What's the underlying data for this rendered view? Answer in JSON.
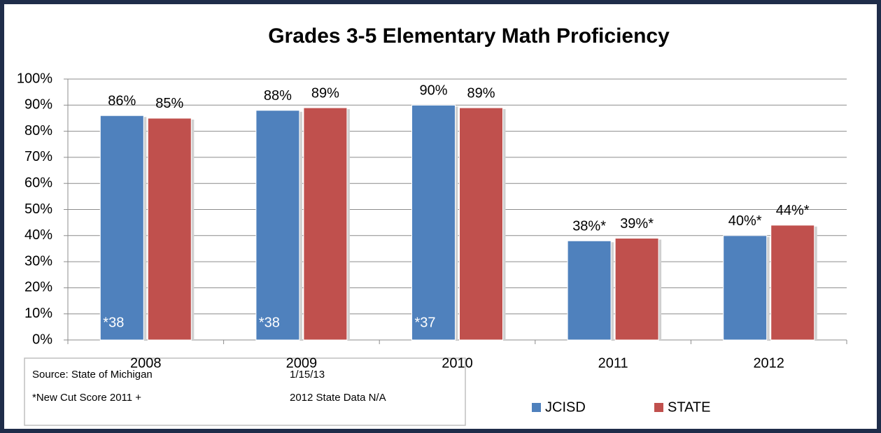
{
  "chart_data": {
    "type": "bar",
    "title": "Grades 3-5 Elementary Math Proficiency",
    "categories": [
      "2008",
      "2009",
      "2010",
      "2011",
      "2012"
    ],
    "series": [
      {
        "name": "JCISD",
        "color": "#4f81bd",
        "values": [
          86,
          88,
          90,
          38,
          40
        ],
        "value_labels": [
          "86%",
          "88%",
          "90%",
          "38%*",
          "40%*"
        ]
      },
      {
        "name": "STATE",
        "color": "#c0504d",
        "values": [
          85,
          89,
          89,
          39,
          44
        ],
        "value_labels": [
          "85%",
          "89%",
          "89%",
          "39%*",
          "44%*"
        ]
      }
    ],
    "bar_notes": [
      "*38",
      "*38",
      "*37"
    ],
    "ylim": [
      0,
      100
    ],
    "yticks": [
      {
        "value": 0,
        "label": "0%"
      },
      {
        "value": 10,
        "label": "10%"
      },
      {
        "value": 20,
        "label": "20%"
      },
      {
        "value": 30,
        "label": "30%"
      },
      {
        "value": 40,
        "label": "40%"
      },
      {
        "value": 50,
        "label": "50%"
      },
      {
        "value": 60,
        "label": "60%"
      },
      {
        "value": 70,
        "label": "70%"
      },
      {
        "value": 80,
        "label": "80%"
      },
      {
        "value": 90,
        "label": "90%"
      },
      {
        "value": 100,
        "label": "100%"
      }
    ],
    "grid": true,
    "legend": "bottom",
    "source_box": [
      [
        "Source:  State of Michigan",
        "1/15/13"
      ],
      [
        "*New Cut Score 2011 +",
        "2012 State Data N/A"
      ]
    ]
  }
}
